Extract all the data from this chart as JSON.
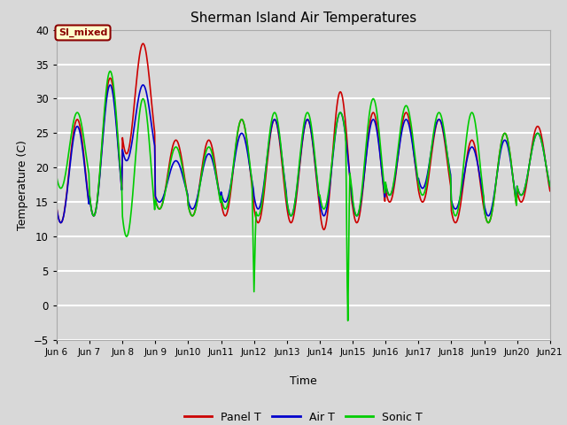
{
  "title": "Sherman Island Air Temperatures",
  "xlabel": "Time",
  "ylabel": "Temperature (C)",
  "ylim": [
    -5,
    40
  ],
  "xlim_days": [
    6,
    21
  ],
  "bg_color": "#d8d8d8",
  "line_colors": {
    "panel": "#cc0000",
    "air": "#0000cc",
    "sonic": "#00cc00"
  },
  "line_widths": {
    "panel": 1.2,
    "air": 1.2,
    "sonic": 1.2
  },
  "legend_labels": [
    "Panel T",
    "Air T",
    "Sonic T"
  ],
  "annotation_label": "SI_mixed",
  "yticks": [
    -5,
    0,
    5,
    10,
    15,
    20,
    25,
    30,
    35,
    40
  ],
  "title_fontsize": 11
}
